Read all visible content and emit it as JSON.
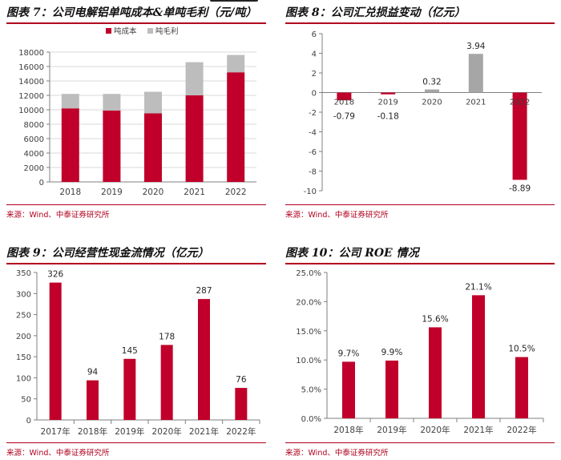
{
  "colors": {
    "accent": "#c0002a",
    "secondary": "#bdbdbd",
    "neutral_bar": "#a6a6a6"
  },
  "source_text": "来源：Wind、中泰证券研究所",
  "chart_data": [
    {
      "type": "bar",
      "stacked": true,
      "title": "图表 7：公司电解铝单吨成本&单吨毛利（元/吨）",
      "categories": [
        "2018",
        "2019",
        "2020",
        "2021",
        "2022"
      ],
      "series": [
        {
          "name": "吨成本",
          "values": [
            10200,
            9900,
            9500,
            12000,
            15200
          ]
        },
        {
          "name": "吨毛利",
          "values": [
            2000,
            2300,
            3000,
            4600,
            2400
          ]
        }
      ],
      "ylim": [
        0,
        18000
      ],
      "yticks": [
        "0",
        "2000",
        "4000",
        "6000",
        "8000",
        "10000",
        "12000",
        "14000",
        "16000",
        "18000"
      ],
      "ytick_values": [
        0,
        2000,
        4000,
        6000,
        8000,
        10000,
        12000,
        14000,
        16000,
        18000
      ],
      "grid": true,
      "legend": "top-center"
    },
    {
      "type": "bar",
      "title": "图表 8：公司汇兑损益变动（亿元）",
      "categories": [
        "2018",
        "2019",
        "2020",
        "2021",
        "2022"
      ],
      "values": [
        -0.79,
        -0.18,
        0.32,
        3.94,
        -8.89
      ],
      "data_labels": [
        "-0.79",
        "-0.18",
        "0.32",
        "3.94",
        "-8.89"
      ],
      "ylim": [
        -10,
        6
      ],
      "yticks": [
        "6",
        "4",
        "2",
        "0",
        "-2",
        "-4",
        "-6",
        "-8",
        "-10"
      ],
      "ytick_values": [
        6,
        4,
        2,
        0,
        -2,
        -4,
        -6,
        -8,
        -10
      ],
      "grid": false
    },
    {
      "type": "bar",
      "title": "图表 9：公司经营性现金流情况（亿元）",
      "categories": [
        "2017年",
        "2018年",
        "2019年",
        "2020年",
        "2021年",
        "2022年"
      ],
      "values": [
        326,
        94,
        145,
        178,
        287,
        76
      ],
      "data_labels": [
        "326",
        "94",
        "145",
        "178",
        "287",
        "76"
      ],
      "ylim": [
        0,
        350
      ],
      "yticks": [
        "0",
        "50",
        "100",
        "150",
        "200",
        "250",
        "300",
        "350"
      ],
      "ytick_values": [
        0,
        50,
        100,
        150,
        200,
        250,
        300,
        350
      ],
      "grid": false
    },
    {
      "type": "bar",
      "title": "图表 10：公司 ROE 情况",
      "categories": [
        "2018年",
        "2019年",
        "2020年",
        "2021年",
        "2022年"
      ],
      "values": [
        9.7,
        9.9,
        15.6,
        21.1,
        10.5
      ],
      "data_labels": [
        "9.7%",
        "9.9%",
        "15.6%",
        "21.1%",
        "10.5%"
      ],
      "ylim": [
        0,
        25
      ],
      "yticks": [
        "0.0%",
        "5.0%",
        "10.0%",
        "15.0%",
        "20.0%",
        "25.0%"
      ],
      "ytick_values": [
        0,
        5,
        10,
        15,
        20,
        25
      ],
      "grid": false
    }
  ]
}
